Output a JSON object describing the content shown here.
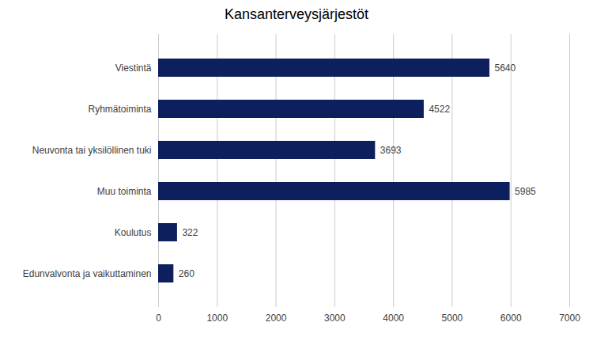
{
  "chart_data": {
    "type": "bar",
    "orientation": "horizontal",
    "title": "Kansanterveysjärjestöt",
    "categories": [
      "Edunvalvonta ja vaikuttaminen",
      "Koulutus",
      "Muu toiminta",
      "Neuvonta tai yksilöllinen tuki",
      "Ryhmätoiminta",
      "Viestintä"
    ],
    "values": [
      260,
      322,
      5985,
      3693,
      4522,
      5640
    ],
    "color": "#0d1f5c",
    "xlim": [
      0,
      7000
    ],
    "xticks": [
      0,
      1000,
      2000,
      3000,
      4000,
      5000,
      6000,
      7000
    ],
    "grid": true,
    "data_labels": true
  }
}
